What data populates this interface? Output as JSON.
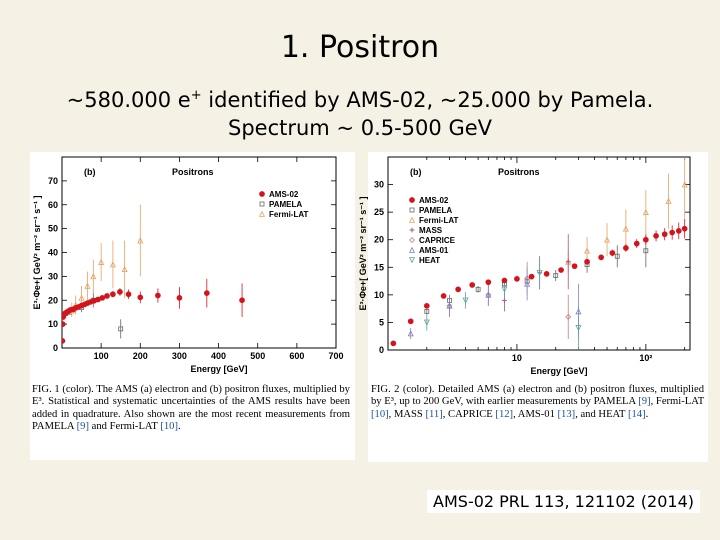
{
  "slide": {
    "title": "1. Positron",
    "subtitle_a": "~580.000 e",
    "subtitle_sup": "+",
    "subtitle_b": " identified by AMS-02, ~25.000 by Pamela.",
    "subtitle_line2": "Spectrum ~ 0.5-500 GeV",
    "citation": "AMS-02 PRL 113, 121102 (2014)"
  },
  "figures": [
    {
      "panel_label": "(b)",
      "panel_title": "Positrons",
      "ylabel": "E³·Φe+[ GeV² m⁻² sr⁻¹ s⁻¹ ]",
      "xlabel": "Energy [GeV]",
      "legend": [
        "AMS-02",
        "PAMELA",
        "Fermi-LAT"
      ],
      "caption_fig": "FIG. 1 (color).",
      "caption_text": "The AMS (a) electron and (b) positron fluxes, multiplied by E³. Statistical and systematic uncertainties of the AMS results have been added in quadrature. Also shown are the most recent measurements from PAMELA",
      "caption_ref1": "[9]",
      "caption_and": " and Fermi-LAT ",
      "caption_ref2": "[10]",
      "caption_end": "."
    },
    {
      "panel_label": "(b)",
      "panel_title": "Positrons",
      "ylabel": "E³·Φe+[ GeV² m⁻² sr⁻¹ s⁻¹ ]",
      "xlabel": "Energy [GeV]",
      "legend": [
        "AMS-02",
        "PAMELA",
        "Fermi-LAT",
        "MASS",
        "CAPRICE",
        "AMS-01",
        "HEAT"
      ],
      "caption_fig": "FIG. 2 (color).",
      "caption_text": "Detailed AMS (a) electron and (b) positron fluxes, multiplied by E³, up to 200 GeV, with earlier measurements by PAMELA ",
      "caption_ref1": "[9]",
      "caption_mid1": ", Fermi-LAT ",
      "caption_ref2": "[10]",
      "caption_mid2": ", MASS ",
      "caption_ref3": "[11]",
      "caption_mid3": ", CAPRICE ",
      "caption_ref4": "[12]",
      "caption_mid4": ", AMS-01 ",
      "caption_ref5": "[13]",
      "caption_mid5": ", and HEAT ",
      "caption_ref6": "[14]",
      "caption_end": "."
    }
  ],
  "colors": {
    "ams": "#d4141c",
    "pamela": "#666666",
    "fermi": "#e8a060",
    "background": "#f5f1e4"
  },
  "chart_data": [
    {
      "type": "scatter",
      "xscale": "linear",
      "xlim": [
        0,
        700
      ],
      "ylim": [
        0,
        80
      ],
      "xticks": [
        100,
        200,
        300,
        400,
        500,
        600,
        700
      ],
      "yticks": [
        0,
        10,
        20,
        30,
        40,
        50,
        60,
        70
      ],
      "series": [
        {
          "name": "AMS-02",
          "x": [
            1,
            2,
            3,
            5,
            8,
            12,
            17,
            22,
            28,
            35,
            42,
            50,
            58,
            65,
            73,
            82,
            92,
            103,
            115,
            130,
            148,
            170,
            200,
            245,
            300,
            370,
            460
          ],
          "y": [
            3,
            10,
            13,
            14,
            14.5,
            15,
            15.5,
            16,
            16.2,
            16.8,
            17.2,
            17.8,
            18.3,
            18.8,
            19.3,
            19.8,
            20.3,
            21,
            21.8,
            22.5,
            23.5,
            22.5,
            21.2,
            22,
            21,
            23,
            20
          ],
          "err": [
            0.5,
            0.5,
            0.5,
            0.5,
            0.5,
            0.5,
            0.5,
            0.5,
            0.5,
            0.5,
            0.5,
            0.6,
            0.6,
            0.7,
            0.7,
            0.8,
            0.9,
            1,
            1.1,
            1.3,
            1.6,
            2,
            2.5,
            3,
            4.5,
            6,
            7
          ]
        },
        {
          "name": "PAMELA",
          "x": [
            5,
            10,
            20,
            30,
            50,
            80,
            150
          ],
          "y": [
            14,
            14.5,
            15,
            16,
            17,
            20,
            8
          ],
          "err": [
            1,
            1,
            1,
            1.5,
            2,
            3,
            4
          ]
        },
        {
          "name": "Fermi-LAT",
          "x": [
            25,
            35,
            50,
            65,
            80,
            100,
            130,
            160,
            200
          ],
          "y": [
            16,
            18,
            21,
            26,
            30,
            36,
            35,
            33,
            45
          ],
          "err": [
            3,
            4,
            5,
            6,
            7,
            8,
            10,
            12,
            15
          ]
        }
      ]
    },
    {
      "type": "scatter",
      "xscale": "log",
      "xlim": [
        1,
        220
      ],
      "ylim": [
        0,
        35
      ],
      "xticks": [
        10,
        100
      ],
      "yticks": [
        0,
        5,
        10,
        15,
        20,
        25,
        30
      ],
      "series": [
        {
          "name": "AMS-02",
          "x": [
            1.1,
            1.5,
            2,
            2.7,
            3.5,
            4.5,
            6,
            8,
            10,
            13,
            17,
            22,
            28,
            35,
            45,
            55,
            70,
            85,
            100,
            120,
            140,
            160,
            180,
            200
          ],
          "y": [
            1.2,
            5.2,
            8,
            9.8,
            11,
            11.8,
            12.3,
            12.6,
            12.9,
            13.3,
            13.8,
            14.5,
            15.2,
            16,
            16.8,
            17.6,
            18.5,
            19.3,
            20,
            20.7,
            21,
            21.3,
            21.6,
            22
          ],
          "err": [
            0.2,
            0.3,
            0.3,
            0.3,
            0.3,
            0.3,
            0.3,
            0.3,
            0.3,
            0.3,
            0.3,
            0.4,
            0.4,
            0.5,
            0.5,
            0.6,
            0.7,
            0.8,
            0.9,
            1,
            1.1,
            1.3,
            1.5,
            1.8
          ]
        },
        {
          "name": "PAMELA",
          "x": [
            2,
            3,
            5,
            8,
            12,
            20,
            35,
            60,
            100
          ],
          "y": [
            7,
            9,
            11,
            12,
            12.5,
            13.5,
            15.5,
            17,
            18
          ],
          "err": [
            0.5,
            0.5,
            0.6,
            0.6,
            0.8,
            1,
            1.5,
            2,
            3
          ]
        },
        {
          "name": "Fermi-LAT",
          "x": [
            25,
            35,
            50,
            70,
            100,
            150,
            200
          ],
          "y": [
            16,
            18,
            20,
            22,
            25,
            27,
            30
          ],
          "err": [
            2,
            2.5,
            3,
            3.5,
            4,
            5,
            6
          ]
        },
        {
          "name": "MASS",
          "x": [
            8,
            15,
            25
          ],
          "y": [
            9,
            14,
            16
          ],
          "err": [
            2,
            3,
            5
          ]
        },
        {
          "name": "CAPRICE",
          "x": [
            3,
            6,
            12,
            25
          ],
          "y": [
            8,
            10,
            13,
            6
          ],
          "err": [
            2,
            2,
            3,
            4
          ]
        },
        {
          "name": "AMS-01",
          "x": [
            1.5,
            3,
            6,
            12,
            30
          ],
          "y": [
            3,
            8,
            10,
            12,
            7
          ],
          "err": [
            1,
            2,
            2,
            3,
            5
          ]
        },
        {
          "name": "HEAT",
          "x": [
            2,
            4,
            8,
            15,
            30
          ],
          "y": [
            5,
            9,
            11,
            14,
            4
          ],
          "err": [
            1.5,
            1.5,
            2,
            3,
            4
          ]
        }
      ]
    }
  ]
}
